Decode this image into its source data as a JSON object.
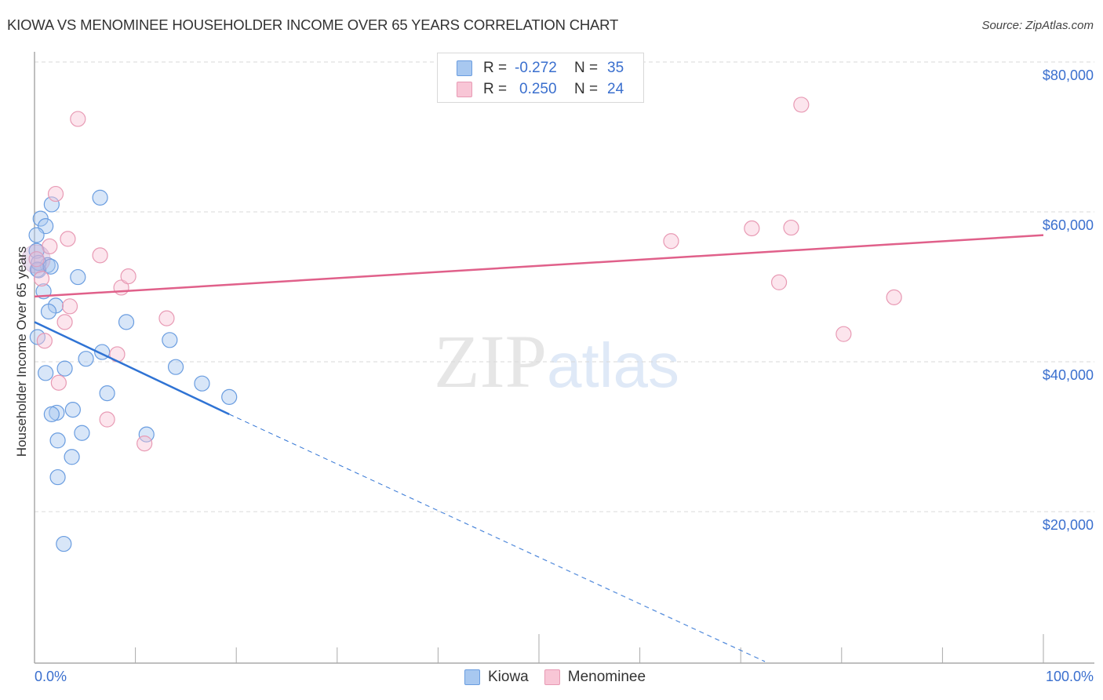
{
  "header": {
    "title": "KIOWA VS MENOMINEE HOUSEHOLDER INCOME OVER 65 YEARS CORRELATION CHART",
    "source": "Source: ZipAtlas.com"
  },
  "legend": {
    "rows": [
      {
        "series": "Kiowa",
        "r_label": "R =",
        "r_value": "-0.272",
        "n_label": "N =",
        "n_value": "35",
        "color": "#a8c8f0",
        "border": "#6a9de0"
      },
      {
        "series": "Menominee",
        "r_label": "R =",
        "r_value": "0.250",
        "n_label": "N =",
        "n_value": "24",
        "color": "#f8c6d6",
        "border": "#e89ab4"
      }
    ]
  },
  "bottom_legend": {
    "items": [
      {
        "label": "Kiowa",
        "color": "#a8c8f0",
        "border": "#6a9de0"
      },
      {
        "label": "Menominee",
        "color": "#f8c6d6",
        "border": "#e89ab4"
      }
    ]
  },
  "axes": {
    "ylabel": "Householder Income Over 65 years",
    "yticks": [
      "$80,000",
      "$60,000",
      "$40,000",
      "$20,000"
    ],
    "xtick_left": "0.0%",
    "xtick_right": "100.0%"
  },
  "watermark": {
    "zip": "ZIP",
    "atlas": "atlas"
  },
  "colors": {
    "blue": "#2f73d4",
    "pink": "#e0608a",
    "tick": "#3a6fce"
  },
  "chart_data": {
    "type": "scatter",
    "title": "KIOWA VS MENOMINEE HOUSEHOLDER INCOME OVER 65 YEARS CORRELATION CHART",
    "xlabel": "",
    "ylabel": "Householder Income Over 65 years",
    "xlim": [
      0,
      100
    ],
    "ylim": [
      0,
      80000
    ],
    "x_unit": "%",
    "grid": true,
    "legend_position": "top-center and bottom",
    "series": [
      {
        "name": "Kiowa",
        "r": -0.272,
        "n": 35,
        "color": "#a8c8f0",
        "trend": {
          "x": [
            0,
            19.3
          ],
          "y": [
            45300,
            33000
          ],
          "dashed_extension_to": [
            72.4,
            0
          ]
        },
        "points": [
          [
            6.5,
            61900
          ],
          [
            1.7,
            61000
          ],
          [
            0.6,
            59100
          ],
          [
            1.1,
            58100
          ],
          [
            0.2,
            56900
          ],
          [
            0.2,
            54800
          ],
          [
            1.3,
            52900
          ],
          [
            0.4,
            52200
          ],
          [
            4.3,
            51300
          ],
          [
            0.9,
            49400
          ],
          [
            2.1,
            47500
          ],
          [
            1.4,
            46700
          ],
          [
            0.3,
            43300
          ],
          [
            9.1,
            45300
          ],
          [
            1.1,
            38500
          ],
          [
            2.2,
            33200
          ],
          [
            1.7,
            33000
          ],
          [
            3.8,
            33600
          ],
          [
            3.0,
            39100
          ],
          [
            5.1,
            40400
          ],
          [
            6.7,
            41300
          ],
          [
            13.4,
            42900
          ],
          [
            14.0,
            39300
          ],
          [
            7.2,
            35800
          ],
          [
            16.6,
            37100
          ],
          [
            19.3,
            35300
          ],
          [
            2.3,
            29500
          ],
          [
            3.7,
            27300
          ],
          [
            4.7,
            30500
          ],
          [
            11.1,
            30300
          ],
          [
            2.3,
            24600
          ],
          [
            2.9,
            15700
          ],
          [
            0.4,
            53200
          ],
          [
            0.3,
            52300
          ],
          [
            1.6,
            52700
          ]
        ]
      },
      {
        "name": "Menominee",
        "r": 0.25,
        "n": 24,
        "color": "#f8c6d6",
        "trend": {
          "x": [
            0,
            100
          ],
          "y": [
            48700,
            56900
          ]
        },
        "points": [
          [
            4.3,
            72400
          ],
          [
            2.1,
            62400
          ],
          [
            76.0,
            74300
          ],
          [
            3.3,
            56400
          ],
          [
            1.5,
            55400
          ],
          [
            6.5,
            54200
          ],
          [
            0.2,
            53700
          ],
          [
            0.7,
            51100
          ],
          [
            8.6,
            49900
          ],
          [
            9.3,
            51400
          ],
          [
            3.5,
            47400
          ],
          [
            3.0,
            45300
          ],
          [
            13.1,
            45800
          ],
          [
            1.0,
            42800
          ],
          [
            8.2,
            41000
          ],
          [
            2.4,
            37200
          ],
          [
            7.2,
            32300
          ],
          [
            10.9,
            29100
          ],
          [
            63.1,
            56100
          ],
          [
            71.1,
            57800
          ],
          [
            75.0,
            57900
          ],
          [
            73.8,
            50600
          ],
          [
            85.2,
            48600
          ],
          [
            80.2,
            43700
          ]
        ]
      }
    ]
  }
}
